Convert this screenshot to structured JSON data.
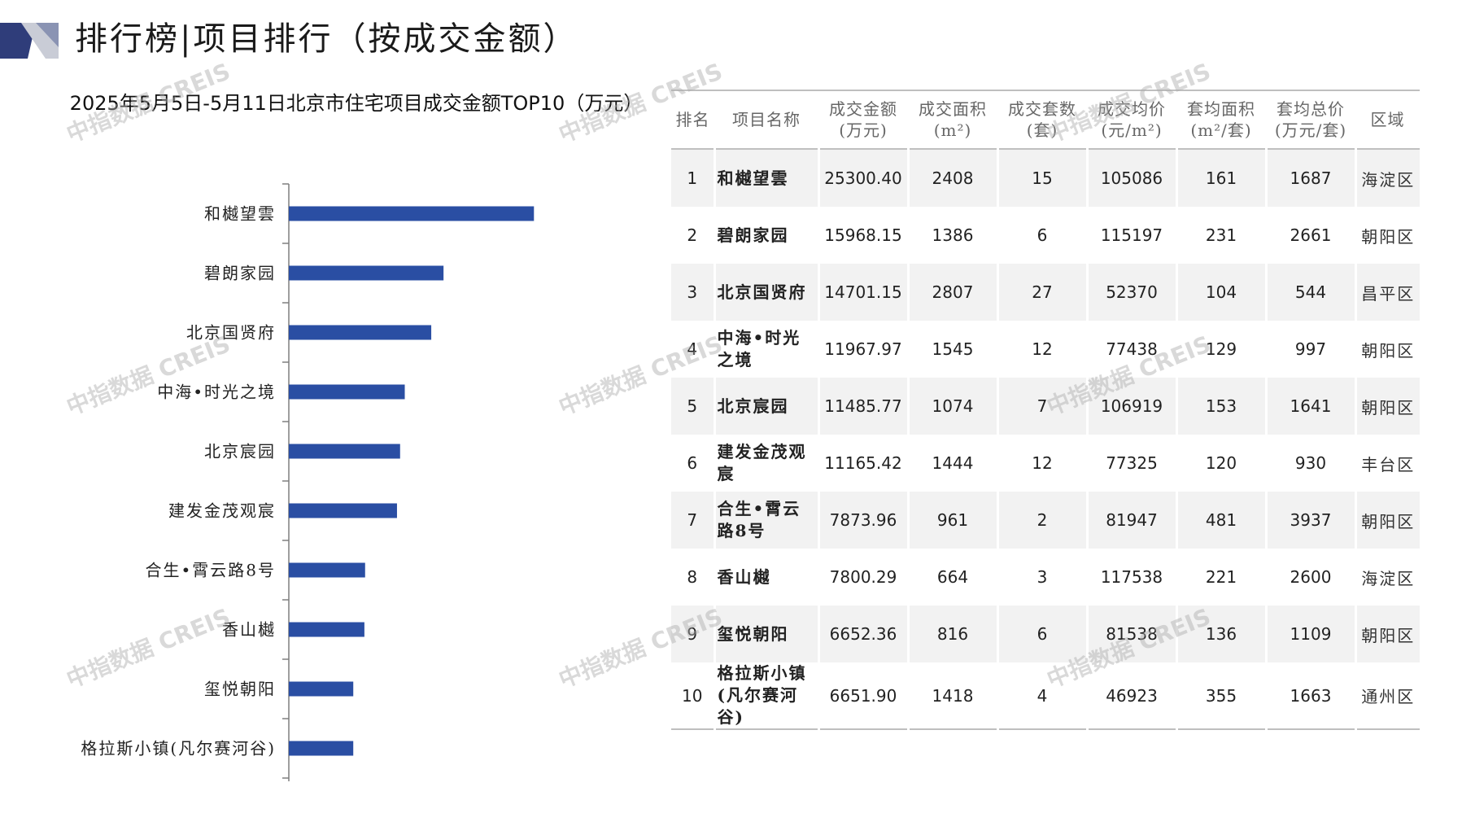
{
  "header": {
    "title": "排行榜|项目排行（按成交金额）"
  },
  "watermark": "中指数据 CREIS",
  "colors": {
    "bar": "#2a4ea3",
    "axis": "#7f7f7f",
    "header_dark": "#3a4a8c",
    "header_light": "#c5c9d6"
  },
  "chart_data": {
    "type": "bar",
    "orientation": "horizontal",
    "title": "2025年5月5日-5月11日北京市住宅项目成交金额TOP10（万元）",
    "categories": [
      "和樾望雲",
      "碧朗家园",
      "北京国贤府",
      "中海•时光之境",
      "北京宸园",
      "建发金茂观宸",
      "合生•霄云路8号",
      "香山樾",
      "玺悦朝阳",
      "格拉斯小镇(凡尔赛河谷)"
    ],
    "values": [
      25300.4,
      15968.15,
      14701.15,
      11967.97,
      11485.77,
      11165.42,
      7873.96,
      7800.29,
      6652.36,
      6651.9
    ],
    "xlim": [
      0,
      30000
    ],
    "grid": false,
    "legend": "none"
  },
  "table": {
    "headers": [
      "排名",
      "项目名称",
      "成交金额\n(万元)",
      "成交面积\n(m²)",
      "成交套数\n(套)",
      "成交均价\n(元/m²)",
      "套均面积\n(m²/套)",
      "套均总价\n(万元/套)",
      "区域"
    ],
    "rows": [
      [
        "1",
        "和樾望雲",
        "25300.40",
        "2408",
        "15",
        "105086",
        "161",
        "1687",
        "海淀区"
      ],
      [
        "2",
        "碧朗家园",
        "15968.15",
        "1386",
        "6",
        "115197",
        "231",
        "2661",
        "朝阳区"
      ],
      [
        "3",
        "北京国贤府",
        "14701.15",
        "2807",
        "27",
        "52370",
        "104",
        "544",
        "昌平区"
      ],
      [
        "4",
        "中海•时光之境",
        "11967.97",
        "1545",
        "12",
        "77438",
        "129",
        "997",
        "朝阳区"
      ],
      [
        "5",
        "北京宸园",
        "11485.77",
        "1074",
        "7",
        "106919",
        "153",
        "1641",
        "朝阳区"
      ],
      [
        "6",
        "建发金茂观宸",
        "11165.42",
        "1444",
        "12",
        "77325",
        "120",
        "930",
        "丰台区"
      ],
      [
        "7",
        "合生•霄云路8号",
        "7873.96",
        "961",
        "2",
        "81947",
        "481",
        "3937",
        "朝阳区"
      ],
      [
        "8",
        "香山樾",
        "7800.29",
        "664",
        "3",
        "117538",
        "221",
        "2600",
        "海淀区"
      ],
      [
        "9",
        "玺悦朝阳",
        "6652.36",
        "816",
        "6",
        "81538",
        "136",
        "1109",
        "朝阳区"
      ],
      [
        "10",
        "格拉斯小镇(凡尔赛河谷)",
        "6651.90",
        "1418",
        "4",
        "46923",
        "355",
        "1663",
        "通州区"
      ]
    ]
  }
}
